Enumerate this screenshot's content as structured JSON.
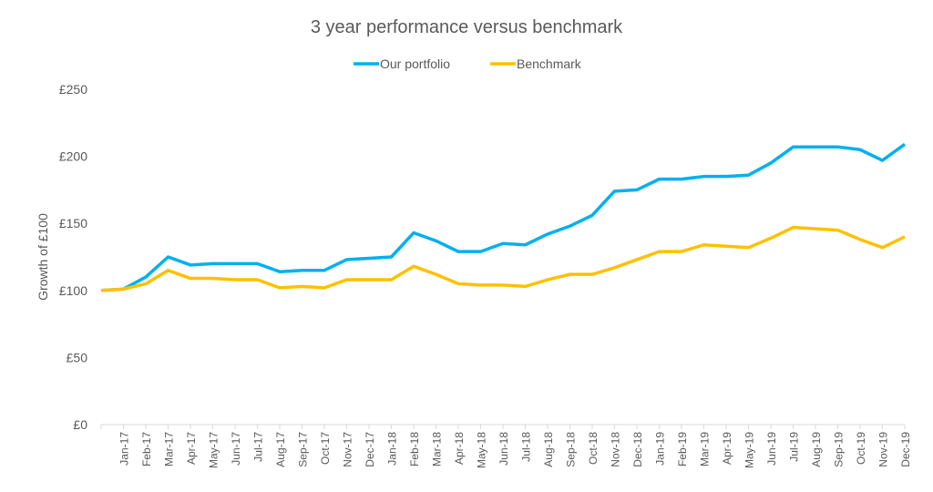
{
  "chart_data": {
    "type": "line",
    "title": "3 year performance versus benchmark",
    "xlabel": "",
    "ylabel": "Growth of £100",
    "ylim": [
      0,
      250
    ],
    "yticks": [
      "£0",
      "£50",
      "£100",
      "£150",
      "£200",
      "£250"
    ],
    "ytick_values": [
      0,
      50,
      100,
      150,
      200,
      250
    ],
    "grid": false,
    "legend": "top",
    "categories": [
      "",
      "Jan-17",
      "Feb-17",
      "Mar-17",
      "Apr-17",
      "May-17",
      "Jun-17",
      "Jul-17",
      "Aug-17",
      "Sep-17",
      "Oct-17",
      "Nov-17",
      "Dec-17",
      "Jan-18",
      "Feb-18",
      "Mar-18",
      "Apr-18",
      "May-18",
      "Jun-18",
      "Jul-18",
      "Aug-18",
      "Sep-18",
      "Oct-18",
      "Nov-18",
      "Dec-18",
      "Jan-19",
      "Feb-19",
      "Mar-19",
      "Apr-19",
      "May-19",
      "Jun-19",
      "Jul-19",
      "Aug-19",
      "Sep-19",
      "Oct-19",
      "Nov-19",
      "Dec-19"
    ],
    "series": [
      {
        "name": "Our portfolio",
        "color": "#00B0F0",
        "values": [
          100,
          101,
          110,
          125,
          119,
          120,
          120,
          120,
          114,
          115,
          115,
          123,
          124,
          125,
          143,
          137,
          129,
          129,
          135,
          134,
          142,
          148,
          156,
          174,
          175,
          183,
          183,
          185,
          185,
          186,
          195,
          207,
          207,
          207,
          205,
          197,
          209
        ]
      },
      {
        "name": "Benchmark",
        "color": "#FFC000",
        "values": [
          100,
          101,
          105,
          115,
          109,
          109,
          108,
          108,
          102,
          103,
          102,
          108,
          108,
          108,
          118,
          112,
          105,
          104,
          104,
          103,
          108,
          112,
          112,
          117,
          123,
          129,
          129,
          134,
          133,
          132,
          139,
          147,
          146,
          145,
          138,
          132,
          140
        ]
      }
    ]
  }
}
